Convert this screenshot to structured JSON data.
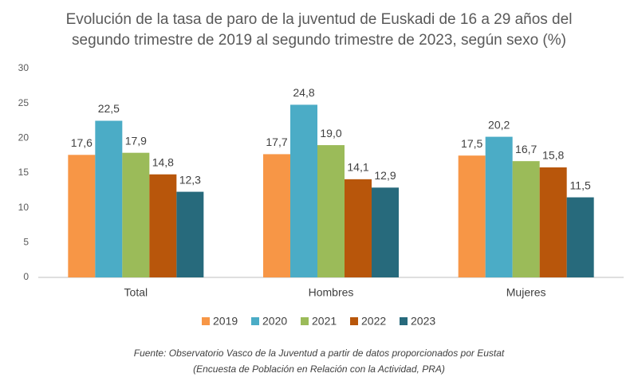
{
  "chart_data": {
    "type": "bar",
    "title": [
      "Evolución de la tasa de paro de la juventud de Euskadi de 16 a 29 años del",
      "segundo trimestre de 2019 al segundo trimestre de 2023, según sexo (%)"
    ],
    "categories": [
      "Total",
      "Hombres",
      "Mujeres"
    ],
    "series": [
      {
        "name": "2019",
        "color": "#f79646",
        "values": [
          17.6,
          17.7,
          17.5
        ],
        "value_labels": [
          "17,6",
          "17,7",
          "17,5"
        ]
      },
      {
        "name": "2020",
        "color": "#4bacc6",
        "values": [
          22.5,
          24.8,
          20.2
        ],
        "value_labels": [
          "22,5",
          "24,8",
          "20,2"
        ]
      },
      {
        "name": "2021",
        "color": "#9bbb59",
        "values": [
          17.9,
          19.0,
          16.7
        ],
        "value_labels": [
          "17,9",
          "19,0",
          "16,7"
        ]
      },
      {
        "name": "2022",
        "color": "#b8560b",
        "values": [
          14.8,
          14.1,
          15.8
        ],
        "value_labels": [
          "14,8",
          "14,1",
          "15,8"
        ]
      },
      {
        "name": "2023",
        "color": "#276a7c",
        "values": [
          12.3,
          12.9,
          11.5
        ],
        "value_labels": [
          "12,3",
          "12,9",
          "11,5"
        ]
      }
    ],
    "ylim": [
      0,
      30
    ],
    "yticks": [
      0,
      5,
      10,
      15,
      20,
      25,
      30
    ],
    "grid": false,
    "legend": "bottom",
    "source": [
      "Fuente: Observatorio Vasco de la Juventud a partir de datos proporcionados por Eustat",
      "(Encuesta de Población en Relación con la Actividad, PRA)"
    ]
  }
}
